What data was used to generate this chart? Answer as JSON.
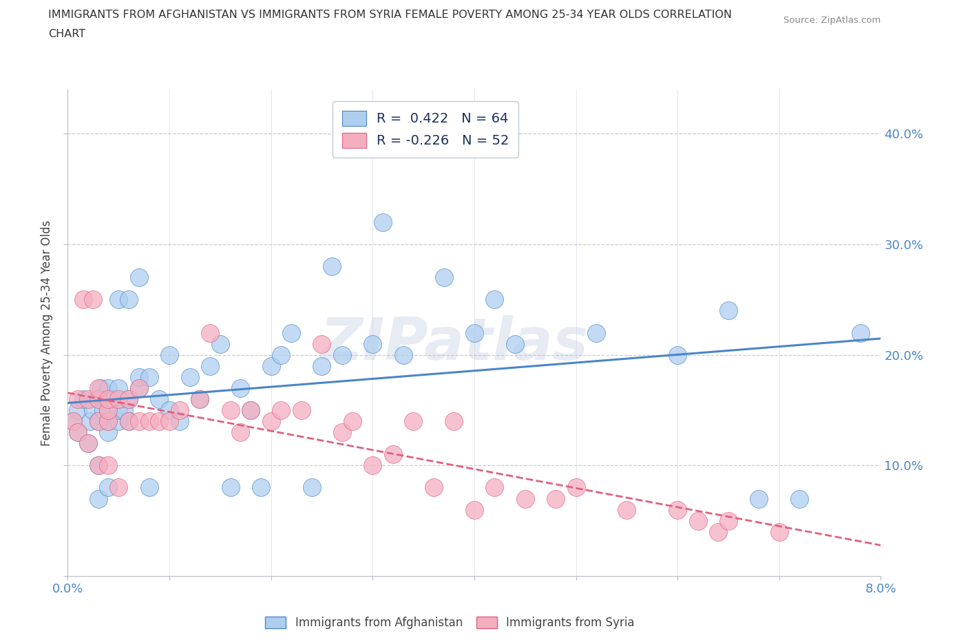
{
  "title_line1": "IMMIGRANTS FROM AFGHANISTAN VS IMMIGRANTS FROM SYRIA FEMALE POVERTY AMONG 25-34 YEAR OLDS CORRELATION",
  "title_line2": "CHART",
  "source_text": "Source: ZipAtlas.com",
  "ylabel": "Female Poverty Among 25-34 Year Olds",
  "xlim": [
    0.0,
    0.08
  ],
  "ylim": [
    0.0,
    0.44
  ],
  "xticks": [
    0.0,
    0.01,
    0.02,
    0.03,
    0.04,
    0.05,
    0.06,
    0.07,
    0.08
  ],
  "xticklabels_show": {
    "0.0": "0.0%",
    "0.08": "8.0%"
  },
  "yticks": [
    0.0,
    0.1,
    0.2,
    0.3,
    0.4
  ],
  "afghanistan_R": 0.422,
  "afghanistan_N": 64,
  "syria_R": -0.226,
  "syria_N": 52,
  "afghanistan_color": "#aecef0",
  "syria_color": "#f5aec0",
  "afghanistan_line_color": "#4a86c8",
  "syria_line_color": "#e06080",
  "afghanistan_edge_color": "#4a86c8",
  "syria_edge_color": "#e06080",
  "watermark": "ZIPatlas",
  "watermark_color": "#d0d8e8",
  "tick_color": "#4a86c8",
  "grid_color": "#ddddee",
  "dashed_line_color": "#c8c8d8",
  "afghanistan_scatter_x": [
    0.0005,
    0.001,
    0.001,
    0.0015,
    0.002,
    0.0022,
    0.0025,
    0.003,
    0.003,
    0.003,
    0.003,
    0.0032,
    0.0035,
    0.004,
    0.004,
    0.004,
    0.004,
    0.004,
    0.0045,
    0.005,
    0.005,
    0.005,
    0.005,
    0.0055,
    0.006,
    0.006,
    0.006,
    0.007,
    0.007,
    0.007,
    0.008,
    0.008,
    0.009,
    0.01,
    0.01,
    0.011,
    0.012,
    0.013,
    0.014,
    0.015,
    0.016,
    0.017,
    0.018,
    0.019,
    0.02,
    0.021,
    0.022,
    0.024,
    0.025,
    0.026,
    0.027,
    0.03,
    0.031,
    0.033,
    0.037,
    0.04,
    0.042,
    0.044,
    0.052,
    0.06,
    0.065,
    0.068,
    0.072,
    0.078
  ],
  "afghanistan_scatter_y": [
    0.14,
    0.13,
    0.15,
    0.16,
    0.12,
    0.14,
    0.15,
    0.07,
    0.1,
    0.14,
    0.16,
    0.17,
    0.15,
    0.08,
    0.13,
    0.14,
    0.15,
    0.17,
    0.16,
    0.14,
    0.15,
    0.17,
    0.25,
    0.15,
    0.14,
    0.16,
    0.25,
    0.17,
    0.18,
    0.27,
    0.08,
    0.18,
    0.16,
    0.15,
    0.2,
    0.14,
    0.18,
    0.16,
    0.19,
    0.21,
    0.08,
    0.17,
    0.15,
    0.08,
    0.19,
    0.2,
    0.22,
    0.08,
    0.19,
    0.28,
    0.2,
    0.21,
    0.32,
    0.2,
    0.27,
    0.22,
    0.25,
    0.21,
    0.22,
    0.2,
    0.24,
    0.07,
    0.07,
    0.22
  ],
  "syria_scatter_x": [
    0.0005,
    0.001,
    0.001,
    0.0015,
    0.002,
    0.002,
    0.0025,
    0.003,
    0.003,
    0.003,
    0.003,
    0.004,
    0.004,
    0.004,
    0.004,
    0.005,
    0.005,
    0.006,
    0.006,
    0.007,
    0.007,
    0.008,
    0.009,
    0.01,
    0.011,
    0.013,
    0.014,
    0.016,
    0.017,
    0.018,
    0.02,
    0.021,
    0.023,
    0.025,
    0.027,
    0.028,
    0.03,
    0.032,
    0.034,
    0.036,
    0.038,
    0.04,
    0.042,
    0.045,
    0.048,
    0.05,
    0.055,
    0.06,
    0.062,
    0.064,
    0.065,
    0.07
  ],
  "syria_scatter_y": [
    0.14,
    0.13,
    0.16,
    0.25,
    0.12,
    0.16,
    0.25,
    0.1,
    0.14,
    0.16,
    0.17,
    0.1,
    0.14,
    0.15,
    0.16,
    0.08,
    0.16,
    0.14,
    0.16,
    0.14,
    0.17,
    0.14,
    0.14,
    0.14,
    0.15,
    0.16,
    0.22,
    0.15,
    0.13,
    0.15,
    0.14,
    0.15,
    0.15,
    0.21,
    0.13,
    0.14,
    0.1,
    0.11,
    0.14,
    0.08,
    0.14,
    0.06,
    0.08,
    0.07,
    0.07,
    0.08,
    0.06,
    0.06,
    0.05,
    0.04,
    0.05,
    0.04
  ],
  "legend_R_af": "R =  0.422",
  "legend_N_af": "N = 64",
  "legend_R_sy": "R = -0.226",
  "legend_N_sy": "N = 52"
}
